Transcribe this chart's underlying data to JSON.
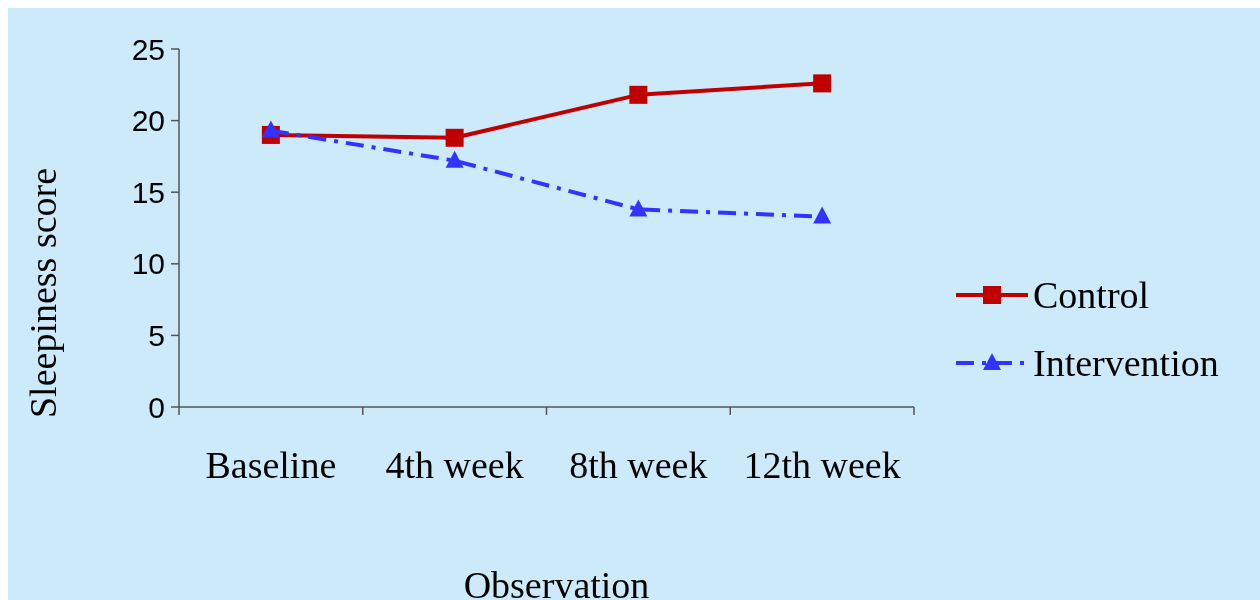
{
  "chart_data": {
    "type": "line",
    "xlabel": "Observation",
    "ylabel": "Sleepiness score",
    "categories": [
      "Baseline",
      "4th week",
      "8th week",
      "12th week"
    ],
    "ylim": [
      0,
      25
    ],
    "yticks": [
      0,
      5,
      10,
      15,
      20,
      25
    ],
    "grid": false,
    "legend": "right",
    "series": [
      {
        "name": "Control",
        "color": "#c00000",
        "values": [
          19.0,
          18.8,
          21.8,
          22.6
        ],
        "marker": "square",
        "line_style": "solid"
      },
      {
        "name": "Intervention",
        "color": "#3333ff",
        "values": [
          19.3,
          17.2,
          13.8,
          13.3
        ],
        "marker": "triangle",
        "line_style": "dashdot"
      }
    ]
  }
}
